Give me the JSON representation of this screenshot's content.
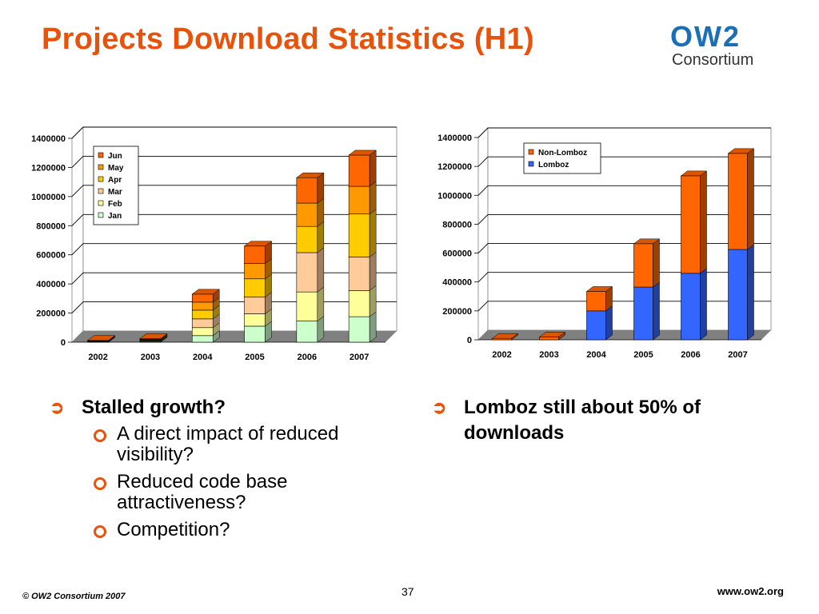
{
  "slide": {
    "title": "Projects Download Statistics (H1)",
    "logo_text_main": "OW2",
    "logo_text_sub": "Consortium",
    "bullets_left": {
      "heading": "Stalled growth?",
      "items": [
        "A direct impact of reduced visibility?",
        "Reduced code base attractiveness?",
        "Competition?"
      ]
    },
    "bullets_right": {
      "heading": "Lomboz still about 50% of downloads"
    },
    "footer": {
      "copyright": "© OW2 Consortium 2007",
      "page": "37",
      "url": "www.ow2.org"
    },
    "colors": {
      "accent": "#e8530c",
      "logo_blue": "#1a6fb5",
      "logo_gray": "#333333"
    },
    "icons": {
      "bullet_level1": "arrow-right-icon",
      "bullet_level2": "ring-bullet-icon"
    }
  },
  "chart_data": [
    {
      "type": "bar",
      "stacked": true,
      "three_d": true,
      "categories": [
        "2002",
        "2003",
        "2004",
        "2005",
        "2006",
        "2007"
      ],
      "series": [
        {
          "name": "Jan",
          "color": "#ccffcc",
          "values": [
            2000,
            4000,
            45000,
            110000,
            145000,
            175000
          ]
        },
        {
          "name": "Feb",
          "color": "#ffff99",
          "values": [
            2000,
            4000,
            55000,
            85000,
            200000,
            180000
          ]
        },
        {
          "name": "Mar",
          "color": "#ffcc99",
          "values": [
            2000,
            4000,
            60000,
            115000,
            270000,
            230000
          ]
        },
        {
          "name": "Apr",
          "color": "#ffcc00",
          "values": [
            2000,
            4000,
            60000,
            125000,
            180000,
            295000
          ]
        },
        {
          "name": "May",
          "color": "#ff9900",
          "values": [
            2000,
            4000,
            55000,
            105000,
            160000,
            190000
          ]
        },
        {
          "name": "Jun",
          "color": "#ff6600",
          "values": [
            2000,
            4000,
            55000,
            120000,
            175000,
            215000
          ]
        }
      ],
      "legend_order": [
        "Jun",
        "May",
        "Apr",
        "Mar",
        "Feb",
        "Jan"
      ],
      "ylim": [
        0,
        1400000
      ],
      "yticks": [
        0,
        200000,
        400000,
        600000,
        800000,
        1000000,
        1200000,
        1400000
      ],
      "legend_position": "top-left",
      "grid": true
    },
    {
      "type": "bar",
      "stacked": true,
      "three_d": true,
      "categories": [
        "2002",
        "2003",
        "2004",
        "2005",
        "2006",
        "2007"
      ],
      "series": [
        {
          "name": "Lomboz",
          "color": "#3366ff",
          "values": [
            0,
            0,
            200000,
            365000,
            460000,
            625000
          ]
        },
        {
          "name": "Non-Lomboz",
          "color": "#ff6600",
          "values": [
            10000,
            20000,
            135000,
            300000,
            675000,
            665000
          ]
        }
      ],
      "legend_order": [
        "Non-Lomboz",
        "Lomboz"
      ],
      "ylim": [
        0,
        1400000
      ],
      "yticks": [
        0,
        200000,
        400000,
        600000,
        800000,
        1000000,
        1200000,
        1400000
      ],
      "legend_position": "top-left",
      "grid": true
    }
  ]
}
